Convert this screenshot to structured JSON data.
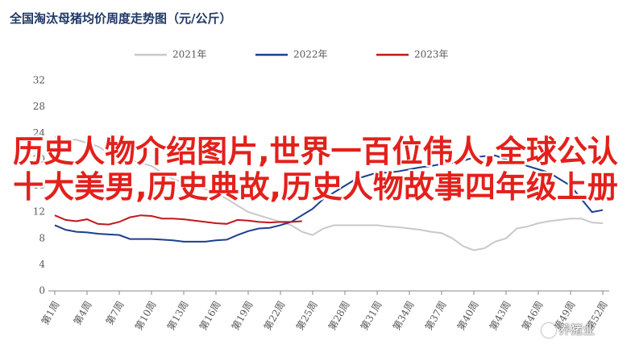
{
  "chart_data": {
    "type": "line",
    "title": "全国淘汰母猪均价周度走势图（元/公斤）",
    "categories": [
      "第1周",
      null,
      null,
      "第4周",
      null,
      null,
      "第7周",
      null,
      null,
      "第10周",
      null,
      null,
      "第13周",
      null,
      null,
      "第16周",
      null,
      null,
      "第19周",
      null,
      null,
      "第22周",
      null,
      null,
      "第25周",
      null,
      null,
      "第28周",
      null,
      null,
      "第31周",
      null,
      null,
      "第34周",
      null,
      null,
      "第37周",
      null,
      null,
      "第40周",
      null,
      null,
      "第43周",
      null,
      null,
      "第46周",
      null,
      null,
      "第49周",
      null,
      null,
      "第52周"
    ],
    "series": [
      {
        "name": "2021年",
        "color": "#c8c8c8",
        "values": [
          23.5,
          23,
          23,
          22.5,
          22,
          21,
          20.5,
          20,
          19.5,
          19,
          18,
          17,
          16.5,
          16,
          15.5,
          15,
          14,
          13,
          12,
          11.5,
          11,
          10.5,
          10,
          9,
          8.5,
          9.5,
          10,
          10,
          10,
          10,
          10,
          9.8,
          9.7,
          9.5,
          9.3,
          9,
          8.8,
          8,
          6.8,
          6.2,
          6.5,
          7.5,
          8,
          9.5,
          9.8,
          10.3,
          10.6,
          10.8,
          11,
          11,
          10.4,
          10.3
        ]
      },
      {
        "name": "2022年",
        "color": "#1d3f8c",
        "values": [
          10,
          9.3,
          9,
          8.9,
          8.7,
          8.6,
          8.5,
          7.9,
          7.9,
          7.9,
          7.8,
          7.7,
          7.5,
          7.5,
          7.5,
          7.7,
          7.8,
          8.5,
          9.1,
          9.5,
          9.6,
          10,
          10.5,
          11.5,
          12.5,
          14,
          15,
          16,
          17,
          17.5,
          18,
          18,
          18.2,
          18.5,
          18.8,
          19,
          19.3,
          19.5,
          19.8,
          20.3,
          20.5,
          20.6,
          20,
          19.5,
          19,
          18.5,
          18,
          17,
          16,
          14,
          12,
          12.3
        ]
      },
      {
        "name": "2023年",
        "color": "#c0181c",
        "values": [
          11.5,
          10.8,
          10.6,
          10.9,
          10.2,
          10.1,
          10.5,
          11.2,
          11.5,
          11.4,
          11,
          11,
          10.9,
          10.7,
          10.5,
          10.3,
          10.2,
          10.8,
          10.7,
          10.5,
          10.4,
          10.5,
          10.5,
          10.6,
          null,
          null,
          null,
          null,
          null,
          null,
          null,
          null,
          null,
          null,
          null,
          null,
          null,
          null,
          null,
          null,
          null,
          null,
          null,
          null,
          null,
          null,
          null,
          null,
          null,
          null,
          null,
          null
        ]
      }
    ],
    "ylim": [
      0,
      32
    ],
    "yticks": [
      0,
      4,
      8,
      12,
      16,
      20,
      24,
      28,
      32
    ],
    "grid": false
  },
  "overlay": "历史人物介绍图片,世界一百位伟人,全球公认十大美男,历史典故,历史人物故事四年级上册",
  "watermark": "养猪业"
}
